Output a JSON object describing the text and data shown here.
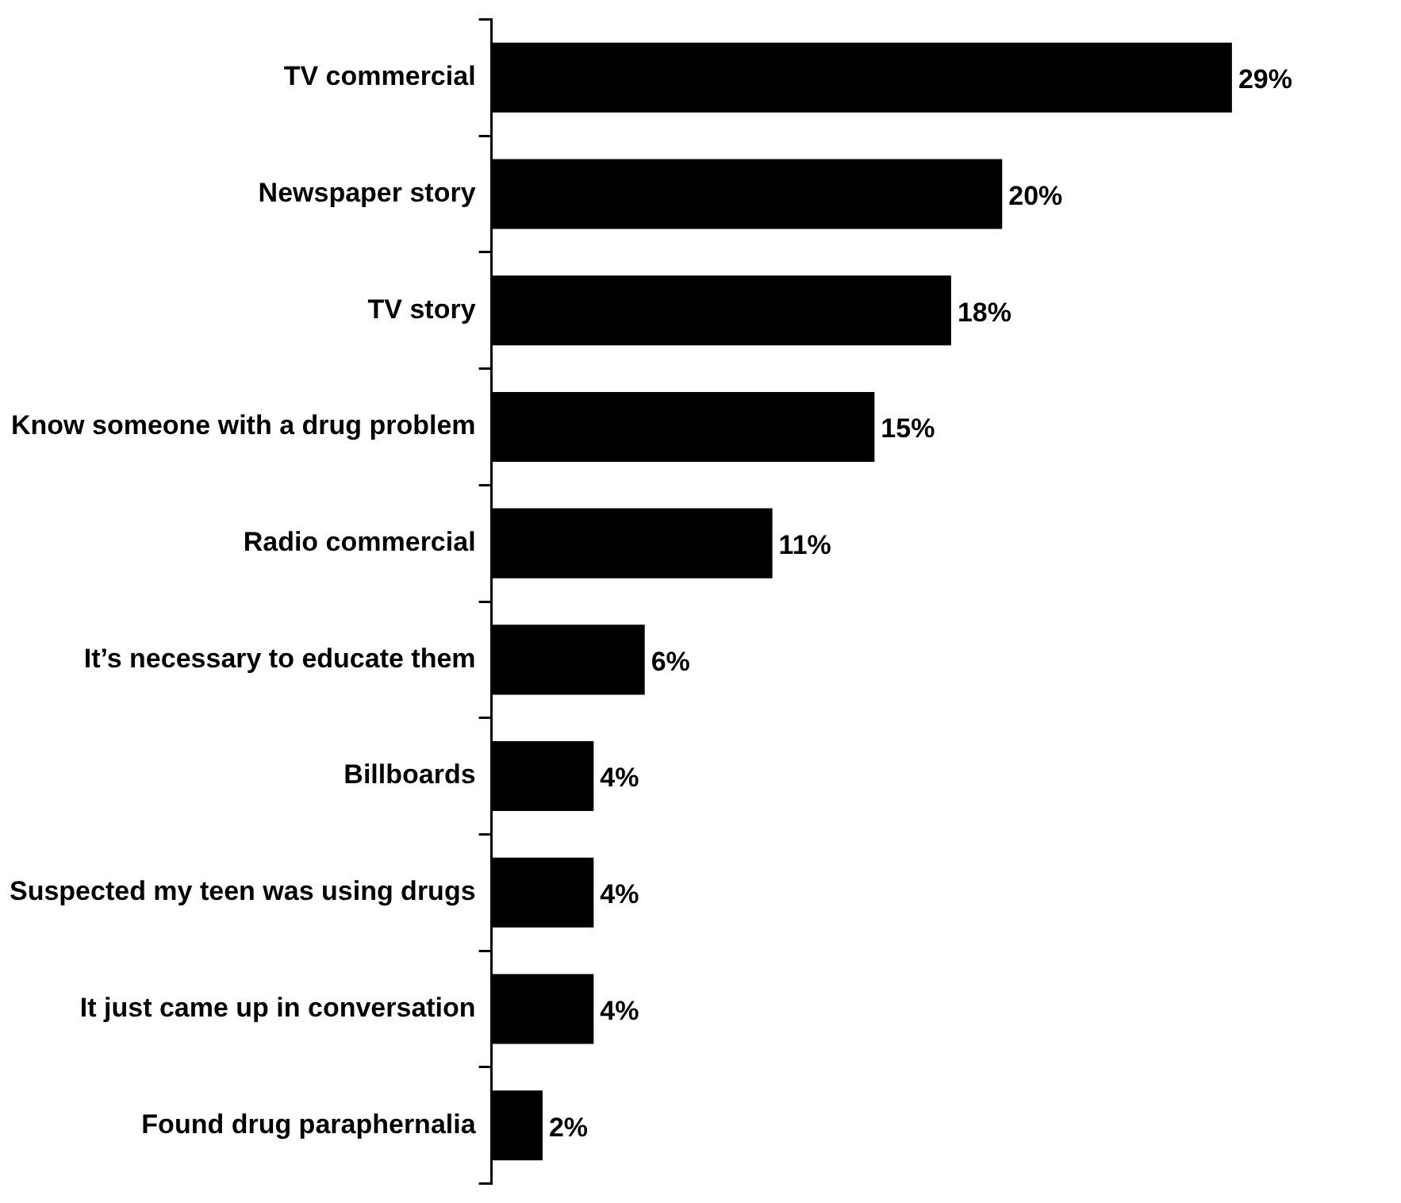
{
  "chart_data": {
    "type": "bar",
    "orientation": "horizontal",
    "categories": [
      "TV commercial",
      "Newspaper story",
      "TV story",
      "Know someone with a drug problem",
      "Radio commercial",
      "It’s necessary to educate them",
      "Billboards",
      "Suspected my teen was using drugs",
      "It just came up in conversation",
      "Found drug paraphernalia"
    ],
    "values": [
      29,
      20,
      18,
      15,
      11,
      6,
      4,
      4,
      4,
      2
    ],
    "value_labels": [
      "29%",
      "20%",
      "18%",
      "15%",
      "11%",
      "6%",
      "4%",
      "4%",
      "4%",
      "2%"
    ],
    "color": "#000000",
    "grid": false,
    "legend": false
  }
}
